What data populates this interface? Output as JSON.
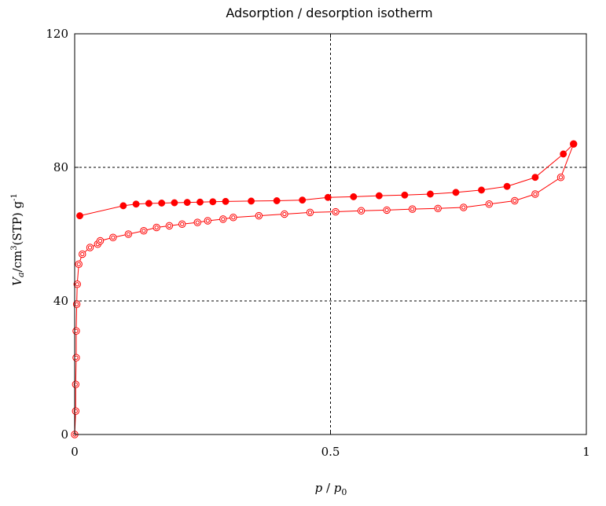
{
  "chart_data": {
    "type": "scatter",
    "title": "Adsorption / desorption isotherm",
    "xlabel": {
      "main": "p",
      "sep": " / ",
      "base": "p",
      "sub": "0"
    },
    "ylabel": {
      "v": "V",
      "sub": "a",
      "unit": "/cm",
      "sup3": "3",
      "stp": "(STP) g",
      "supm1": "-1"
    },
    "xlim": [
      0,
      1
    ],
    "ylim": [
      0,
      120
    ],
    "xticks": [
      0,
      0.5,
      1
    ],
    "xtick_labels": [
      "0",
      "0.5",
      "1"
    ],
    "yticks": [
      0,
      40,
      80,
      120
    ],
    "ytick_labels": [
      "0",
      "40",
      "80",
      "120"
    ],
    "grid": "dashed at x=0.5 and y=40,80",
    "line_color": "#ff0000",
    "series": [
      {
        "marker": "open-circle",
        "x": [
          0.0,
          0.002,
          0.002,
          0.003,
          0.003,
          0.004,
          0.005,
          0.008,
          0.015,
          0.03,
          0.045,
          0.05,
          0.075,
          0.105,
          0.135,
          0.16,
          0.185,
          0.21,
          0.24,
          0.26,
          0.29,
          0.31,
          0.36,
          0.41,
          0.46,
          0.51,
          0.56,
          0.61,
          0.66,
          0.71,
          0.76,
          0.81,
          0.86,
          0.9,
          0.95,
          0.975
        ],
        "y": [
          0,
          7,
          15,
          23,
          31,
          39,
          45,
          51,
          54,
          56,
          57,
          58,
          59,
          60,
          61,
          62,
          62.5,
          63,
          63.5,
          64,
          64.5,
          65,
          65.5,
          66,
          66.5,
          66.7,
          67,
          67.2,
          67.5,
          67.7,
          68,
          69,
          70,
          72,
          77,
          87
        ]
      },
      {
        "marker": "filled-circle",
        "x": [
          0.01,
          0.095,
          0.12,
          0.145,
          0.17,
          0.195,
          0.22,
          0.245,
          0.27,
          0.295,
          0.345,
          0.395,
          0.445,
          0.495,
          0.545,
          0.595,
          0.645,
          0.695,
          0.745,
          0.795,
          0.845,
          0.9,
          0.955,
          0.975
        ],
        "y": [
          65.5,
          68.5,
          69,
          69.2,
          69.3,
          69.4,
          69.5,
          69.6,
          69.7,
          69.8,
          69.9,
          70,
          70.2,
          71,
          71.2,
          71.5,
          71.7,
          72,
          72.5,
          73.2,
          74.3,
          77,
          84,
          87
        ]
      }
    ]
  }
}
